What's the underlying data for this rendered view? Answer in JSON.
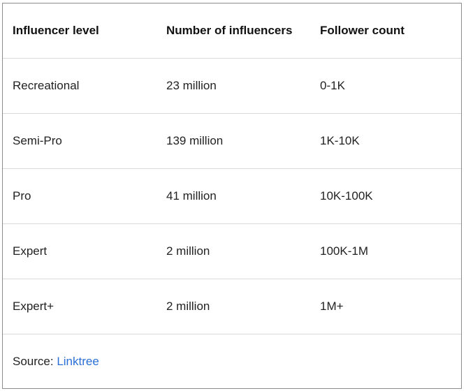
{
  "table": {
    "headers": [
      "Influencer level",
      "Number of influencers",
      "Follower count"
    ],
    "rows": [
      [
        "Recreational",
        "23 million",
        "0-1K"
      ],
      [
        "Semi-Pro",
        "139 million",
        "1K-10K"
      ],
      [
        "Pro",
        "41 million",
        "10K-100K"
      ],
      [
        "Expert",
        "2 million",
        "100K-1M"
      ],
      [
        "Expert+",
        "2 million",
        "1M+"
      ]
    ]
  },
  "source": {
    "label": "Source: ",
    "link_text": "Linktree",
    "link_color": "#2a6fd6"
  }
}
